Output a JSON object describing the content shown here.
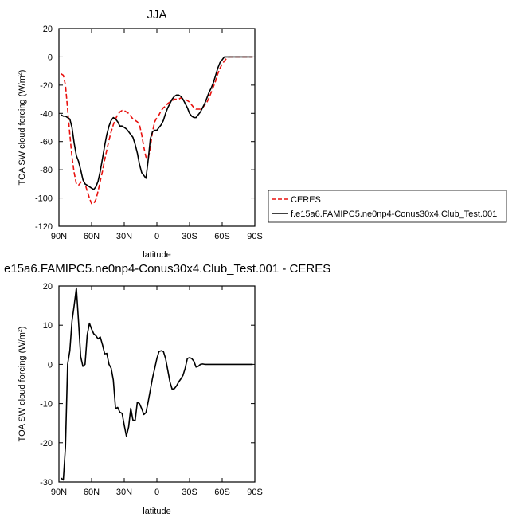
{
  "chart_data": [
    {
      "type": "line",
      "title": "JJA",
      "xlabel": "latitude",
      "ylabel_main": "TOA SW cloud forcing (W/m",
      "ylabel_sup": "2",
      "ylabel_tail": ")",
      "xlim": [
        -90,
        90
      ],
      "ylim": [
        -120,
        20
      ],
      "x_ticks": [
        {
          "value": -90,
          "label": "90N"
        },
        {
          "value": -60,
          "label": "60N"
        },
        {
          "value": -30,
          "label": "30N"
        },
        {
          "value": 0,
          "label": "0"
        },
        {
          "value": 30,
          "label": "30S"
        },
        {
          "value": 60,
          "label": "60S"
        },
        {
          "value": 90,
          "label": "90S"
        }
      ],
      "y_ticks": [
        20,
        0,
        -20,
        -40,
        -60,
        -80,
        -100,
        -120
      ],
      "grid": false,
      "legend_placement": "outside-right",
      "series": [
        {
          "name": "CERES",
          "color": "#e8110e",
          "dash": "dashed",
          "x": [
            -88,
            -86,
            -84,
            -82,
            -80,
            -78,
            -76,
            -74,
            -72,
            -70,
            -68,
            -66,
            -64,
            -62,
            -60,
            -58,
            -56,
            -54,
            -52,
            -50,
            -48,
            -46,
            -44,
            -42,
            -40,
            -38,
            -36,
            -34,
            -32,
            -30,
            -28,
            -26,
            -24,
            -22,
            -20,
            -18,
            -16,
            -14,
            -12,
            -10,
            -8,
            -6,
            -4,
            -2,
            0,
            2,
            4,
            6,
            8,
            10,
            12,
            14,
            16,
            18,
            20,
            22,
            24,
            26,
            28,
            30,
            32,
            34,
            36,
            38,
            40,
            42,
            44,
            46,
            48,
            50,
            52,
            54,
            56,
            58,
            60,
            62,
            64,
            66,
            68,
            70,
            72,
            74,
            76,
            78,
            80,
            82,
            84,
            86,
            88
          ],
          "y": [
            -12,
            -13,
            -20,
            -37,
            -55,
            -71,
            -82,
            -90,
            -91,
            -89,
            -87,
            -90,
            -95,
            -100,
            -104,
            -104,
            -101,
            -95,
            -88,
            -81,
            -73,
            -66,
            -59,
            -53,
            -48,
            -44,
            -41,
            -39,
            -38,
            -38,
            -39,
            -40,
            -42,
            -44,
            -45,
            -46,
            -48,
            -55,
            -64,
            -71,
            -72,
            -64,
            -53,
            -46,
            -43,
            -41,
            -38,
            -36,
            -35,
            -33,
            -32,
            -31,
            -30,
            -30,
            -30,
            -29,
            -30,
            -30,
            -31,
            -32,
            -34,
            -36,
            -37,
            -37,
            -37,
            -36,
            -34,
            -32,
            -29,
            -25,
            -21,
            -17,
            -12,
            -8,
            -5,
            -3,
            -1,
            0,
            0,
            0,
            0,
            0,
            0,
            0,
            0,
            0,
            0,
            0,
            0
          ]
        },
        {
          "name": "f.e15a6.FAMIPC5.ne0np4-Conus30x4.Club_Test.001",
          "color": "#000000",
          "dash": "solid",
          "x": [
            -88,
            -86,
            -84,
            -82,
            -80,
            -78,
            -76,
            -74,
            -72,
            -70,
            -68,
            -66,
            -64,
            -62,
            -60,
            -58,
            -56,
            -54,
            -52,
            -50,
            -48,
            -46,
            -44,
            -42,
            -40,
            -38,
            -36,
            -34,
            -32,
            -30,
            -28,
            -26,
            -24,
            -22,
            -20,
            -18,
            -16,
            -14,
            -12,
            -10,
            -8,
            -6,
            -4,
            -2,
            0,
            2,
            4,
            6,
            8,
            10,
            12,
            14,
            16,
            18,
            20,
            22,
            24,
            26,
            28,
            30,
            32,
            34,
            36,
            38,
            40,
            42,
            44,
            46,
            48,
            50,
            52,
            54,
            56,
            58,
            60,
            62,
            64,
            66,
            68,
            70,
            72,
            74,
            76,
            78,
            80,
            82,
            84,
            86,
            88
          ],
          "y": [
            -41,
            -42,
            -42,
            -43,
            -44,
            -50,
            -61,
            -70,
            -74,
            -80,
            -87,
            -90,
            -91,
            -92,
            -93,
            -94,
            -92,
            -88,
            -81,
            -72,
            -63,
            -55,
            -49,
            -45,
            -43,
            -44,
            -46,
            -49,
            -49,
            -50,
            -51,
            -53,
            -55,
            -57,
            -62,
            -68,
            -76,
            -82,
            -84,
            -86,
            -73,
            -58,
            -53,
            -52,
            -52,
            -50,
            -48,
            -45,
            -40,
            -36,
            -33,
            -30,
            -28,
            -27,
            -27,
            -28,
            -30,
            -33,
            -36,
            -40,
            -42,
            -43,
            -43,
            -41,
            -39,
            -36,
            -33,
            -29,
            -25,
            -22,
            -18,
            -13,
            -8,
            -4,
            -2,
            0,
            0,
            0,
            0,
            0,
            0,
            0,
            0,
            0,
            0,
            0,
            0,
            0,
            0
          ]
        }
      ]
    },
    {
      "type": "line",
      "title": "e15a6.FAMIPC5.ne0np4-Conus30x4.Club_Test.001 - CERES",
      "xlabel": "latitude",
      "ylabel_main": "TOA SW cloud forcing (W/m",
      "ylabel_sup": "2",
      "ylabel_tail": ")",
      "xlim": [
        -90,
        90
      ],
      "ylim": [
        -30,
        20
      ],
      "x_ticks": [
        {
          "value": -90,
          "label": "90N"
        },
        {
          "value": -60,
          "label": "60N"
        },
        {
          "value": -30,
          "label": "30N"
        },
        {
          "value": 0,
          "label": "0"
        },
        {
          "value": 30,
          "label": "30S"
        },
        {
          "value": 60,
          "label": "60S"
        },
        {
          "value": 90,
          "label": "90S"
        }
      ],
      "y_ticks": [
        20,
        10,
        0,
        -10,
        -20,
        -30
      ],
      "grid": false,
      "series": [
        {
          "color": "#000000",
          "dash": "solid",
          "x": [
            -88,
            -86,
            -84,
            -82,
            -80,
            -78,
            -76,
            -74,
            -72,
            -70,
            -68,
            -66,
            -64,
            -62,
            -60,
            -58,
            -56,
            -54,
            -52,
            -50,
            -48,
            -46,
            -44,
            -42,
            -40,
            -38,
            -36,
            -34,
            -32,
            -30,
            -28,
            -26,
            -24,
            -22,
            -20,
            -18,
            -16,
            -14,
            -12,
            -10,
            -8,
            -6,
            -4,
            -2,
            0,
            2,
            4,
            6,
            8,
            10,
            12,
            14,
            16,
            18,
            20,
            22,
            24,
            26,
            28,
            30,
            32,
            34,
            36,
            38,
            40,
            42,
            44,
            46,
            48,
            50,
            52,
            54,
            56,
            58,
            60,
            62,
            64,
            66,
            68,
            70,
            72,
            74,
            76,
            78,
            80,
            82,
            84,
            86,
            88
          ],
          "y": [
            -29,
            -29.5,
            -21,
            0,
            3.5,
            11,
            15,
            19.5,
            11,
            2,
            -0.5,
            0,
            7.5,
            10.5,
            9,
            7.8,
            7.3,
            6.5,
            7,
            5,
            2.7,
            2.8,
            0,
            -1,
            -4,
            -11.3,
            -11,
            -12.2,
            -12.5,
            -15.5,
            -18.3,
            -16,
            -11.2,
            -14.2,
            -14.3,
            -9.7,
            -10,
            -11.3,
            -12.8,
            -12.3,
            -9.5,
            -6.5,
            -3.5,
            -1,
            1.5,
            3.3,
            3.5,
            3.3,
            1.5,
            -1.5,
            -4.5,
            -6.3,
            -6.2,
            -5.5,
            -4.5,
            -3.7,
            -2.8,
            -1,
            1.5,
            1.7,
            1.5,
            0.8,
            -0.7,
            -0.5,
            0,
            0.1,
            0,
            0,
            0,
            0,
            0,
            0,
            0,
            0,
            0,
            0,
            0,
            0,
            0,
            0,
            0,
            0,
            0,
            0,
            0,
            0,
            0,
            0,
            0
          ]
        }
      ]
    }
  ]
}
